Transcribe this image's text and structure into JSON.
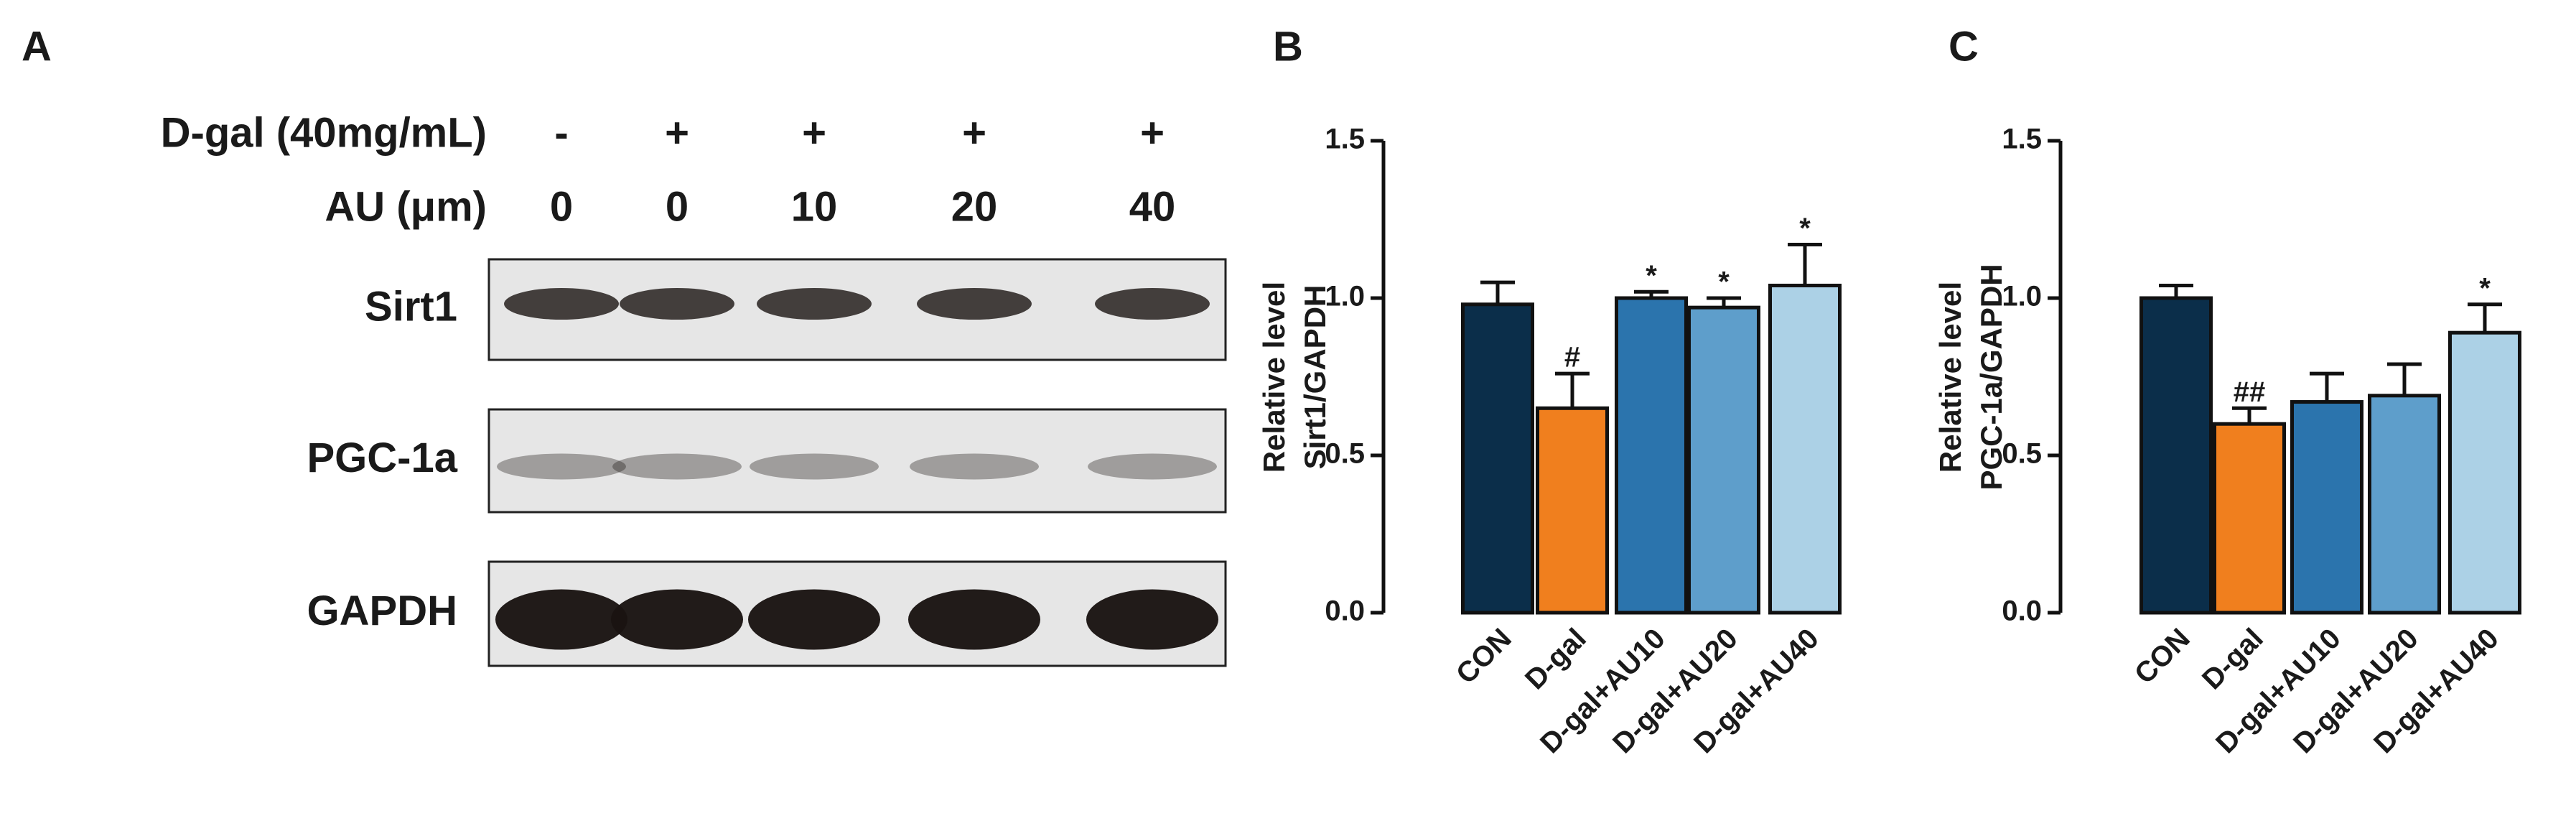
{
  "blot": {
    "panel": "A",
    "rows": [
      {
        "label": "D-gal (40mg/mL)",
        "lanes": [
          "-",
          "+",
          "+",
          "+",
          "+"
        ]
      },
      {
        "label": "AU (μm)",
        "lanes": [
          "0",
          "0",
          "10",
          "20",
          "40"
        ]
      }
    ],
    "bands": [
      "Sirt1",
      "PGC-1a",
      "GAPDH"
    ]
  },
  "chart_data": [
    {
      "type": "bar",
      "panel": "B",
      "ylabel": [
        "Relative level",
        "Sirt1/GAPDH"
      ],
      "categories": [
        "CON",
        "D-gal",
        "D-gal+AU10",
        "D-gal+AU20",
        "D-gal+AU40"
      ],
      "values": [
        0.98,
        0.65,
        1.0,
        0.97,
        1.04
      ],
      "errors": [
        0.07,
        0.11,
        0.02,
        0.03,
        0.13
      ],
      "annotations": [
        null,
        "#",
        "*",
        "*",
        "*"
      ],
      "colors": [
        "#0b2e4a",
        "#f07f1e",
        "#2b74ad",
        "#5e9ecb",
        "#acd1e6"
      ],
      "ylim": [
        0,
        1.5
      ],
      "yticks": [
        {
          "value": 0,
          "label": "0.0"
        },
        {
          "value": 0.5,
          "label": "0.5"
        },
        {
          "value": 1,
          "label": "1.0"
        },
        {
          "value": 1.5,
          "label": "1.5"
        }
      ]
    },
    {
      "type": "bar",
      "panel": "C",
      "ylabel": [
        "Relative level",
        "PGC-1a/GAPDH"
      ],
      "categories": [
        "CON",
        "D-gal",
        "D-gal+AU10",
        "D-gal+AU20",
        "D-gal+AU40"
      ],
      "values": [
        1.0,
        0.6,
        0.67,
        0.69,
        0.89
      ],
      "errors": [
        0.04,
        0.05,
        0.09,
        0.1,
        0.09
      ],
      "annotations": [
        null,
        "##",
        null,
        null,
        "*"
      ],
      "colors": [
        "#0b2e4a",
        "#f07f1e",
        "#2b74ad",
        "#5e9ecb",
        "#acd1e6"
      ],
      "ylim": [
        0,
        1.5
      ],
      "yticks": [
        {
          "value": 0,
          "label": "0.0"
        },
        {
          "value": 0.5,
          "label": "0.5"
        },
        {
          "value": 1,
          "label": "1.0"
        },
        {
          "value": 1.5,
          "label": "1.5"
        }
      ]
    }
  ]
}
